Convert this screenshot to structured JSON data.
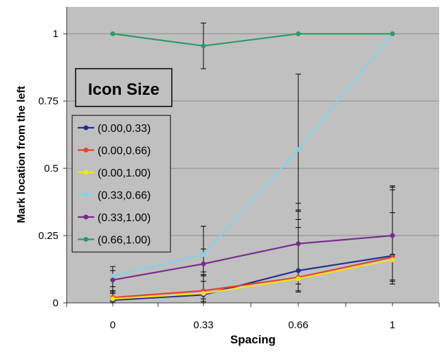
{
  "chart_data": {
    "type": "line",
    "xlabel": "Spacing",
    "ylabel": "Mark location from the left",
    "x": [
      0,
      0.33,
      0.66,
      1
    ],
    "x_tick_labels": [
      "0",
      "0.33",
      "0.66",
      "1"
    ],
    "y_ticks": [
      0,
      0.25,
      0.5,
      0.75,
      1
    ],
    "y_tick_labels": [
      "0",
      "0.25",
      "0.5",
      "0.75",
      "1"
    ],
    "ylim": [
      0,
      1.1
    ],
    "grid": "horizontal",
    "legend": {
      "title": "Icon Size",
      "placement": "left"
    },
    "series": [
      {
        "name": "(0.00,0.33)",
        "color": "#1f2f8f",
        "values": [
          0.01,
          0.03,
          0.12,
          0.175
        ],
        "err_low": [
          0.01,
          0.03,
          0.05,
          0.09
        ],
        "err_high": [
          0.025,
          0.07,
          0.25,
          0.26
        ]
      },
      {
        "name": "(0.00,0.66)",
        "color": "#e8402a",
        "values": [
          0.02,
          0.045,
          0.095,
          0.17
        ],
        "err_low": [
          0.01,
          0.03,
          0.05,
          0.09
        ],
        "err_high": [
          0.025,
          0.07,
          0.25,
          0.26
        ]
      },
      {
        "name": "(0.00,1.00)",
        "color": "#f2e020",
        "values": [
          0.015,
          0.035,
          0.09,
          0.16
        ],
        "err_low": [
          0.01,
          0.03,
          0.05,
          0.09
        ],
        "err_high": [
          0.025,
          0.07,
          0.25,
          0.26
        ]
      },
      {
        "name": "(0.33,0.66)",
        "color": "#7fd4ea",
        "values": [
          0.1,
          0.18,
          0.57,
          1.0
        ],
        "err_low": [
          0.04,
          0.075,
          0.29,
          0.0
        ],
        "err_high": [
          0.035,
          0.105,
          0.28,
          0.0
        ]
      },
      {
        "name": "(0.33,1.00)",
        "color": "#7a2a8e",
        "values": [
          0.085,
          0.145,
          0.22,
          0.25
        ],
        "err_low": [
          0.04,
          0.065,
          0.1,
          0.07
        ],
        "err_high": [
          0.035,
          0.055,
          0.09,
          0.085
        ]
      },
      {
        "name": "(0.66,1.00)",
        "color": "#2a9a6a",
        "values": [
          1.0,
          0.955,
          1.0,
          1.0
        ],
        "err_low": [
          0.0,
          0.085,
          0.0,
          0.0
        ],
        "err_high": [
          0.0,
          0.085,
          0.0,
          0.0
        ]
      }
    ]
  }
}
